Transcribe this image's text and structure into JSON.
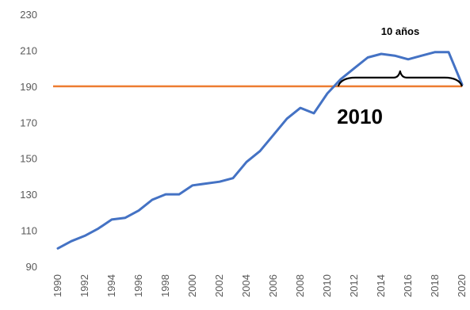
{
  "chart_data": {
    "type": "line",
    "title": "",
    "xlabel": "",
    "ylabel": "",
    "ylim": [
      90,
      230
    ],
    "xlim": [
      1990,
      2020
    ],
    "y_ticks": [
      230,
      210,
      190,
      170,
      150,
      130,
      110,
      90
    ],
    "x_tick_labels": [
      "1990",
      "1992",
      "1994",
      "1996",
      "1998",
      "2000",
      "2002",
      "2004",
      "2006",
      "2008",
      "2010",
      "2012",
      "2014",
      "2016",
      "2018",
      "2020"
    ],
    "grid": false,
    "legend": "none",
    "series": [
      {
        "color": "#4472C4",
        "x": [
          1990,
          1991,
          1992,
          1993,
          1994,
          1995,
          1996,
          1997,
          1998,
          1999,
          2000,
          2001,
          2002,
          2003,
          2004,
          2005,
          2006,
          2007,
          2008,
          2009,
          2010,
          2011,
          2012,
          2013,
          2014,
          2015,
          2016,
          2017,
          2018,
          2019,
          2020
        ],
        "values": [
          100,
          104,
          107,
          111,
          116,
          117,
          121,
          127,
          130,
          130,
          135,
          136,
          137,
          139,
          148,
          154,
          163,
          172,
          178,
          175,
          186,
          194,
          200,
          206,
          208,
          207,
          205,
          207,
          209,
          209,
          191
        ]
      }
    ],
    "reference_line": {
      "y": 190,
      "color": "#ED7D31"
    },
    "brace": {
      "from": 2010.8,
      "to": 2020,
      "color": "#000000"
    },
    "annotations": {
      "period_label": "10 años",
      "year_label": "2010"
    }
  }
}
